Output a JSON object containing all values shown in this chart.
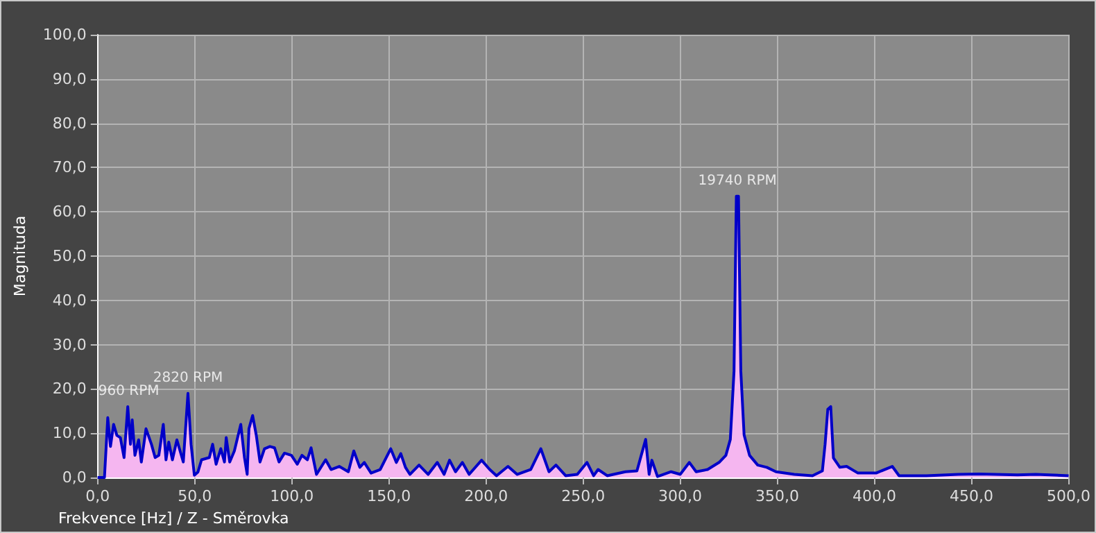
{
  "chart_data": {
    "type": "area",
    "xlabel": "Frekvence [Hz] / Z - Směrovka",
    "ylabel": "Magnituda",
    "x": [
      0,
      3.5,
      5.2,
      6.6,
      8.2,
      9.9,
      11.7,
      13.6,
      15.5,
      16.9,
      17.8,
      19.2,
      21.1,
      22.5,
      24.9,
      27.7,
      29.6,
      31.5,
      33.8,
      35.2,
      36.6,
      38.5,
      40.8,
      44.1,
      46.5,
      48.1,
      49.8,
      51.6,
      53.5,
      57.5,
      59.2,
      61,
      63.4,
      65.3,
      66.2,
      68,
      70.4,
      73.7,
      75.6,
      77,
      77.9,
      79.8,
      81.7,
      83.6,
      85.9,
      88.7,
      91.1,
      93.4,
      96.2,
      99.8,
      102.8,
      105.2,
      108,
      109.9,
      112.7,
      117.4,
      120.2,
      124.4,
      129.1,
      131.9,
      135,
      137.3,
      140.8,
      145.5,
      150.9,
      153.8,
      156.1,
      158.5,
      160.8,
      165.5,
      170.2,
      174.9,
      178.4,
      181.2,
      184.3,
      187.8,
      191.3,
      197.7,
      201.9,
      205.4,
      211.3,
      216,
      223,
      228.2,
      232.4,
      236,
      241,
      247,
      252,
      255.4,
      257.7,
      262.4,
      271.8,
      277.7,
      282.2,
      284,
      285.4,
      288.3,
      295.3,
      300,
      304.7,
      308.2,
      314.1,
      320,
      323.5,
      325.8,
      327.7,
      328.9,
      330,
      331.2,
      332.9,
      335.7,
      339.9,
      344.6,
      349.3,
      358.7,
      368.1,
      373.2,
      374.6,
      376,
      377.5,
      378.9,
      382.2,
      385.7,
      391.5,
      400.9,
      409.2,
      412.7,
      426.8,
      443.2,
      453.8,
      462,
      473.7,
      483.1,
      500
    ],
    "series": [
      {
        "color": "#0000c8",
        "values": [
          0,
          0,
          13.5,
          7,
          12,
          9.5,
          9,
          4.5,
          16,
          7.5,
          13,
          5,
          8.5,
          3.5,
          11,
          7.5,
          4.5,
          5,
          12,
          4,
          8,
          4,
          8.5,
          3.5,
          19,
          7.5,
          0.5,
          1.2,
          4,
          4.5,
          7.5,
          3,
          6.5,
          3.5,
          9,
          3.5,
          6,
          12,
          4.5,
          0.7,
          11,
          14,
          9.5,
          3.5,
          6.5,
          7,
          6.7,
          3.5,
          5.5,
          5,
          3,
          5,
          4,
          6.7,
          0.7,
          4,
          1.8,
          2.5,
          1.3,
          6,
          2.3,
          3.4,
          1,
          1.8,
          6.5,
          3.4,
          5.4,
          2.3,
          0.7,
          2.8,
          0.7,
          3.4,
          0.7,
          3.9,
          1.3,
          3.4,
          0.7,
          3.9,
          1.8,
          0.4,
          2.5,
          0.7,
          1.8,
          6.5,
          1.3,
          2.8,
          0.4,
          0.7,
          3.4,
          0.4,
          1.8,
          0.4,
          1.3,
          1.5,
          8.6,
          0.7,
          3.9,
          0.2,
          1.3,
          0.7,
          3.4,
          1.3,
          1.8,
          3.4,
          5,
          8.6,
          24,
          63.5,
          63.5,
          24,
          9.6,
          5,
          2.8,
          2.3,
          1.3,
          0.7,
          0.4,
          1.5,
          7.5,
          15.4,
          16,
          4.4,
          2.3,
          2.5,
          1,
          1,
          2.5,
          0.4,
          0.4,
          0.7,
          0.8,
          0.7,
          0.6,
          0.7,
          0.4
        ]
      }
    ],
    "xlim": [
      0,
      500
    ],
    "xticks": [
      {
        "value": 0,
        "label": "0,0"
      },
      {
        "value": 50,
        "label": "50,0"
      },
      {
        "value": 100,
        "label": "100,0"
      },
      {
        "value": 150,
        "label": "150,0"
      },
      {
        "value": 200,
        "label": "200,0"
      },
      {
        "value": 250,
        "label": "250,0"
      },
      {
        "value": 300,
        "label": "300,0"
      },
      {
        "value": 350,
        "label": "350,0"
      },
      {
        "value": 400,
        "label": "400,0"
      },
      {
        "value": 450,
        "label": "450,0"
      },
      {
        "value": 500,
        "label": "500,0"
      }
    ],
    "ylim": [
      0,
      100
    ],
    "yticks": [
      {
        "value": 0,
        "label": "0,0"
      },
      {
        "value": 10,
        "label": "10,0"
      },
      {
        "value": 20,
        "label": "20,0"
      },
      {
        "value": 30,
        "label": "30,0"
      },
      {
        "value": 40,
        "label": "40,0"
      },
      {
        "value": 50,
        "label": "50,0"
      },
      {
        "value": 60,
        "label": "60,0"
      },
      {
        "value": 70,
        "label": "70,0"
      },
      {
        "value": 80,
        "label": "80,0"
      },
      {
        "value": 90,
        "label": "90,0"
      },
      {
        "value": 100,
        "label": "100,0"
      }
    ],
    "annotations": [
      {
        "text": "960 RPM",
        "x": 16,
        "y": 16
      },
      {
        "text": "2820 RPM",
        "x": 46.5,
        "y": 19
      },
      {
        "text": "19740 RPM",
        "x": 329.5,
        "y": 63.5
      }
    ],
    "grid": true
  }
}
